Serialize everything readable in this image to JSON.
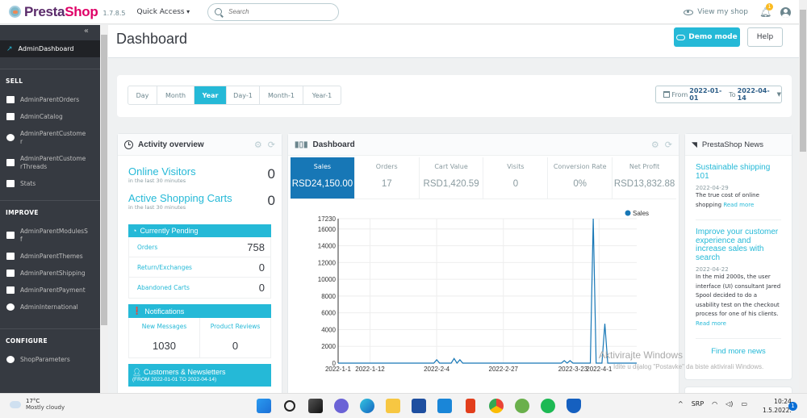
{
  "header": {
    "logo_text_1": "Presta",
    "logo_text_2": "Shop",
    "version": "1.7.8.5",
    "quick_access": "Quick Access",
    "search_placeholder": "Search",
    "view_shop": "View my shop",
    "notifications_count": "1"
  },
  "page": {
    "title": "Dashboard",
    "demo_mode": "Demo mode",
    "help": "Help"
  },
  "sidebar": {
    "collapse_icon": "«",
    "active": "AdminDashboard",
    "sections": [
      {
        "title": "SELL",
        "items": [
          {
            "label": "AdminParentOrders",
            "icon": "basket-icon"
          },
          {
            "label": "AdminCatalog",
            "icon": "store-icon"
          },
          {
            "label": "AdminParentCustomer",
            "icon": "customer-icon"
          },
          {
            "label": "AdminParentCustomerThreads",
            "icon": "chat-icon"
          },
          {
            "label": "Stats",
            "icon": "stats-icon"
          }
        ]
      },
      {
        "title": "IMPROVE",
        "items": [
          {
            "label": "AdminParentModulesSf",
            "icon": "puzzle-icon"
          },
          {
            "label": "AdminParentThemes",
            "icon": "monitor-icon"
          },
          {
            "label": "AdminParentShipping",
            "icon": "truck-icon"
          },
          {
            "label": "AdminParentPayment",
            "icon": "card-icon"
          },
          {
            "label": "AdminInternational",
            "icon": "globe-icon"
          }
        ]
      },
      {
        "title": "CONFIGURE",
        "items": [
          {
            "label": "ShopParameters",
            "icon": "gear-icon"
          }
        ]
      }
    ]
  },
  "period": {
    "buttons": [
      "Day",
      "Month",
      "Year",
      "Day-1",
      "Month-1",
      "Year-1"
    ],
    "active": "Year",
    "from_label": "From",
    "from": "2022-01-01",
    "to_label": "To",
    "to": "2022-04-14"
  },
  "activity": {
    "title": "Activity overview",
    "online_visitors": {
      "label": "Online Visitors",
      "sub": "in the last 30 minutes",
      "value": "0"
    },
    "active_carts": {
      "label": "Active Shopping Carts",
      "sub": "in the last 30 minutes",
      "value": "0"
    },
    "pending_title": "Currently Pending",
    "pending": [
      {
        "label": "Orders",
        "value": "758"
      },
      {
        "label": "Return/Exchanges",
        "value": "0"
      },
      {
        "label": "Abandoned Carts",
        "value": "0"
      }
    ],
    "notifications_title": "Notifications",
    "notifications": [
      {
        "label": "New Messages",
        "value": "1030"
      },
      {
        "label": "Product Reviews",
        "value": "0"
      }
    ],
    "customers_title": "Customers & Newsletters",
    "customers_sub": "(FROM 2022-01-01 TO 2022-04-14)"
  },
  "dashboard": {
    "title": "Dashboard",
    "kpis": [
      {
        "label": "Sales",
        "value": "RSD24,150.00"
      },
      {
        "label": "Orders",
        "value": "17"
      },
      {
        "label": "Cart Value",
        "value": "RSD1,420.59"
      },
      {
        "label": "Visits",
        "value": "0"
      },
      {
        "label": "Conversion Rate",
        "value": "0%"
      },
      {
        "label": "Net Profit",
        "value": "RSD13,832.88"
      }
    ]
  },
  "chart_data": {
    "type": "line",
    "title": "",
    "xlabel": "",
    "ylabel": "",
    "legend": [
      "Sales"
    ],
    "legend_position": "top-right",
    "grid": true,
    "ylim": [
      0,
      17230
    ],
    "yticks": [
      0,
      2000,
      4000,
      6000,
      8000,
      10000,
      12000,
      14000,
      16000,
      17230
    ],
    "xticks": [
      "2022-1-1",
      "2022-1-12",
      "2022-2-4",
      "2022-2-27",
      "2022-3-23",
      "2022-4-1"
    ],
    "series": [
      {
        "name": "Sales",
        "color": "#1777b6",
        "x": [
          "2022-1-1",
          "2022-2-3",
          "2022-2-4",
          "2022-2-5",
          "2022-2-9",
          "2022-2-10",
          "2022-2-11",
          "2022-2-12",
          "2022-2-13",
          "2022-3-19",
          "2022-3-20",
          "2022-3-21",
          "2022-3-22",
          "2022-3-23",
          "2022-3-29",
          "2022-3-30",
          "2022-3-31",
          "2022-4-2",
          "2022-4-3",
          "2022-4-4",
          "2022-4-14"
        ],
        "values": [
          0,
          0,
          400,
          0,
          0,
          550,
          0,
          400,
          0,
          0,
          300,
          0,
          300,
          0,
          0,
          17230,
          0,
          0,
          4700,
          0,
          0
        ]
      }
    ]
  },
  "news": {
    "title": "PrestaShop News",
    "items": [
      {
        "title": "Sustainable shipping 101",
        "date": "2022-04-29",
        "body": "The true cost of online shopping",
        "link": "Read more"
      },
      {
        "title": "Improve your customer experience and increase sales with search",
        "date": "2022-04-22",
        "body": "In the mid 2000s, the user interface (UI) consultant Jared Spool decided to do a usability test on the checkout process for one of his clients.",
        "link": "Read more"
      }
    ],
    "find_more": "Find more news"
  },
  "watermark": {
    "line1": "Aktivirajte Windows",
    "line2": "Idite u dijalog \"Postavke\" da biste aktivirali Windows."
  },
  "taskbar": {
    "temp": "17°C",
    "weather": "Mostly cloudy",
    "lang": "SRP",
    "time": "10:24",
    "date": "1.5.2022.",
    "notif": "1",
    "apps": [
      "start",
      "search",
      "task-view",
      "teams",
      "edge",
      "explorer",
      "store",
      "mail",
      "office",
      "chrome",
      "utorrent",
      "spotify",
      "defender"
    ]
  }
}
